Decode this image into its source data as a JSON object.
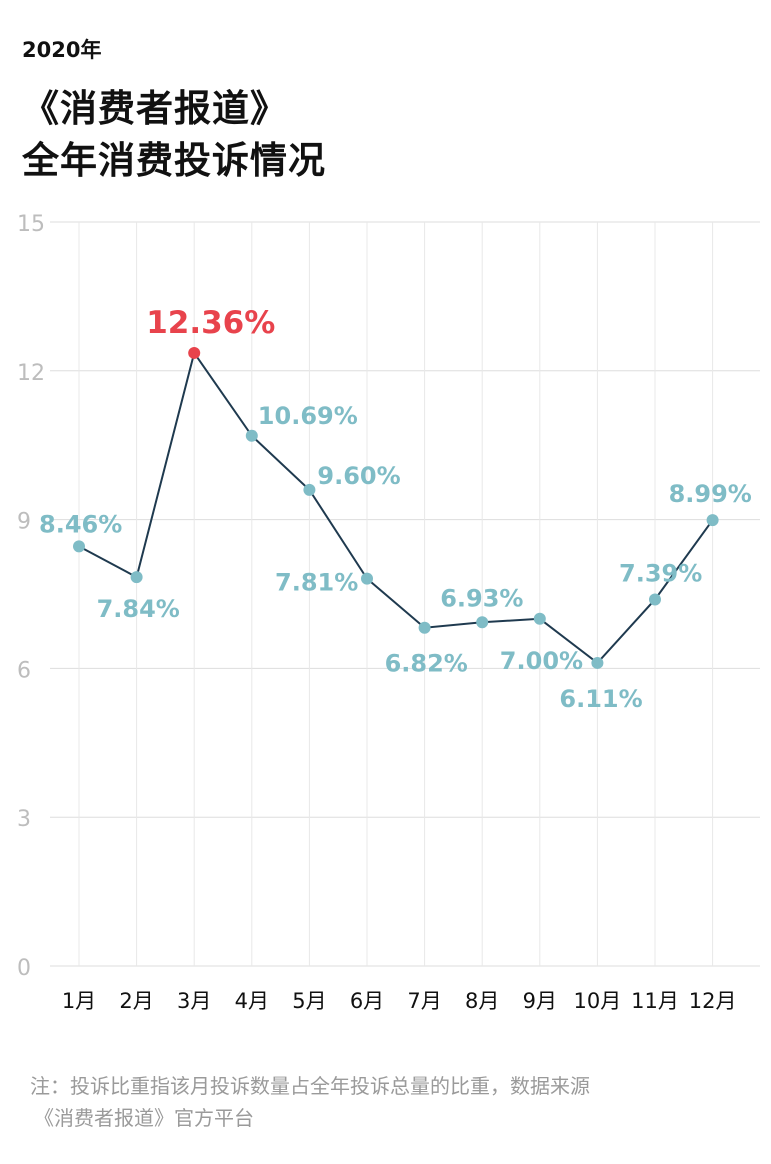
{
  "header": {
    "year": "2020年",
    "title_line1": "《消费者报道》",
    "title_line2": "全年消费投诉情况"
  },
  "chart_data": {
    "type": "line",
    "categories": [
      "1月",
      "2月",
      "3月",
      "4月",
      "5月",
      "6月",
      "7月",
      "8月",
      "9月",
      "10月",
      "11月",
      "12月"
    ],
    "series": [
      {
        "values": [
          8.46,
          7.84,
          12.36,
          10.69,
          9.6,
          7.81,
          6.82,
          6.93,
          7.0,
          6.11,
          7.39,
          8.99
        ]
      }
    ],
    "data_labels": [
      "8.46%",
      "7.84%",
      "12.36%",
      "10.69%",
      "9.60%",
      "7.81%",
      "6.82%",
      "6.93%",
      "7.00%",
      "6.11%",
      "7.39%",
      "8.99%"
    ],
    "highlight_index": 2,
    "yticks": [
      0,
      3,
      6,
      9,
      12,
      15
    ],
    "ylim": [
      0,
      15
    ],
    "grid": true,
    "colors": {
      "line": "#1f3a4f",
      "point": "#7fbcc6",
      "highlight": "#e8434c",
      "label": "#7fbcc6",
      "grid": "#dddddd",
      "tick": "#bdbdbd"
    }
  },
  "footnote": {
    "line1": "注：投诉比重指该月投诉数量占全年投诉总量的比重，数据来源",
    "line2": "《消费者报道》官方平台"
  }
}
